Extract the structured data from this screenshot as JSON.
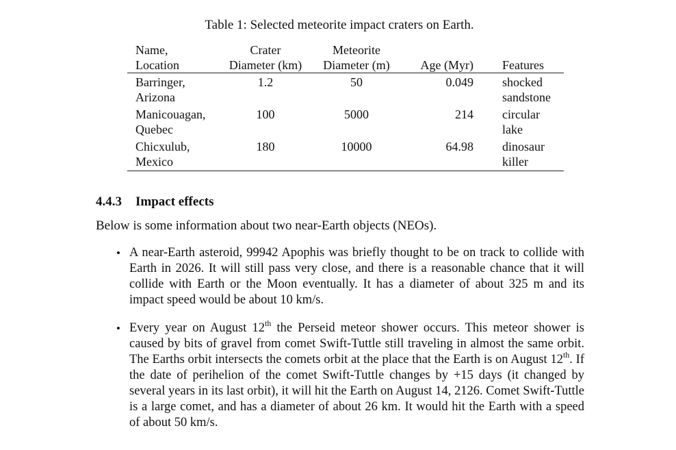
{
  "table": {
    "caption": "Table 1: Selected meteorite impact craters on Earth.",
    "headers": {
      "name_line1": "Name,",
      "name_line2": "Location",
      "crater_line1": "Crater",
      "crater_line2": "Diameter (km)",
      "meteorite_line1": "Meteorite",
      "meteorite_line2": "Diameter (m)",
      "age": "Age (Myr)",
      "features": "Features"
    },
    "rows": [
      {
        "name_line1": "Barringer,",
        "name_line2": "Arizona",
        "crater_diameter": "1.2",
        "meteorite_diameter": "50",
        "age": "0.049",
        "features_line1": "shocked",
        "features_line2": "sandstone"
      },
      {
        "name_line1": "Manicouagan,",
        "name_line2": "Quebec",
        "crater_diameter": "100",
        "meteorite_diameter": "5000",
        "age": "214",
        "features_line1": "circular",
        "features_line2": "lake"
      },
      {
        "name_line1": "Chicxulub,",
        "name_line2": "Mexico",
        "crater_diameter": "180",
        "meteorite_diameter": "10000",
        "age": "64.98",
        "features_line1": "dinosaur",
        "features_line2": "killer"
      }
    ]
  },
  "section": {
    "number": "4.4.3",
    "title": "Impact effects",
    "intro": "Below is some information about two near-Earth objects (NEOs)."
  },
  "bullets": {
    "b1": "A near-Earth asteroid, 99942 Apophis was briefly thought to be on track to collide with Earth in 2026. It will still pass very close, and there is a reasonable chance that it will collide with Earth or the Moon eventually. It has a diameter of about 325 m and its impact speed would be about 10 km/s.",
    "b2_part1": "Every year on August 12",
    "b2_sup1": "th",
    "b2_part2": " the Perseid meteor shower occurs. This meteor shower is caused by bits of gravel from comet Swift-Tuttle still traveling in almost the same orbit. The Earths orbit intersects the comets orbit at the place that the Earth is on August 12",
    "b2_sup2": "th",
    "b2_part3": ". If the date of perihelion of the comet Swift-Tuttle changes by +15 days (it changed by several years in its last orbit), it will hit the Earth on August 14, 2126. Comet Swift-Tuttle is a large comet, and has a diameter of about 26 km. It would hit the Earth with a speed of about 50 km/s.",
    "bullet_glyph": "•"
  }
}
